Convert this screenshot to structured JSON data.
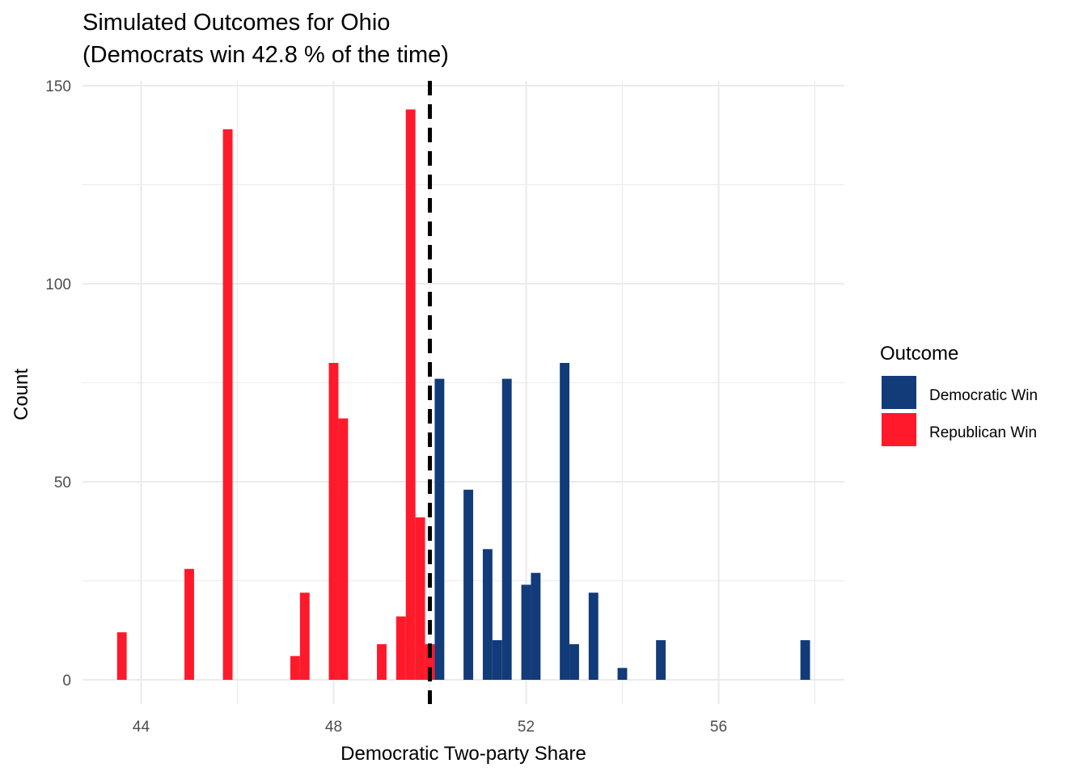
{
  "chart_data": {
    "type": "bar",
    "title": "Simulated Outcomes for Ohio",
    "subtitle": "(Democrats win 42.8 % of the time)",
    "xlabel": "Democratic Two-party Share",
    "ylabel": "Count",
    "xlim": [
      42.8,
      58.6
    ],
    "ylim": [
      -6,
      150
    ],
    "x_ticks": [
      44,
      48,
      52,
      56
    ],
    "y_ticks": [
      0,
      50,
      100,
      150
    ],
    "grid": true,
    "threshold": 50,
    "bin_width": 0.2,
    "legend": {
      "title": "Outcome",
      "position": "right",
      "entries": [
        {
          "label": "Democratic Win",
          "color": "#123b7a"
        },
        {
          "label": "Republican Win",
          "color": "#ff1a2b"
        }
      ]
    },
    "series": [
      {
        "name": "Republican Win",
        "color": "#ff1a2b",
        "points": [
          {
            "x": 43.6,
            "y": 12
          },
          {
            "x": 45.0,
            "y": 28
          },
          {
            "x": 45.8,
            "y": 139
          },
          {
            "x": 47.2,
            "y": 6
          },
          {
            "x": 47.4,
            "y": 22
          },
          {
            "x": 48.0,
            "y": 80
          },
          {
            "x": 48.2,
            "y": 66
          },
          {
            "x": 49.0,
            "y": 9
          },
          {
            "x": 49.4,
            "y": 16
          },
          {
            "x": 49.6,
            "y": 144
          },
          {
            "x": 49.8,
            "y": 41
          },
          {
            "x": 50.0,
            "y": 9
          }
        ]
      },
      {
        "name": "Democratic Win",
        "color": "#123b7a",
        "points": [
          {
            "x": 50.2,
            "y": 76
          },
          {
            "x": 50.8,
            "y": 48
          },
          {
            "x": 51.2,
            "y": 33
          },
          {
            "x": 51.4,
            "y": 10
          },
          {
            "x": 51.6,
            "y": 76
          },
          {
            "x": 52.0,
            "y": 24
          },
          {
            "x": 52.2,
            "y": 27
          },
          {
            "x": 52.8,
            "y": 80
          },
          {
            "x": 53.0,
            "y": 9
          },
          {
            "x": 53.4,
            "y": 22
          },
          {
            "x": 54.0,
            "y": 3
          },
          {
            "x": 54.8,
            "y": 10
          },
          {
            "x": 57.8,
            "y": 10
          }
        ]
      }
    ]
  }
}
